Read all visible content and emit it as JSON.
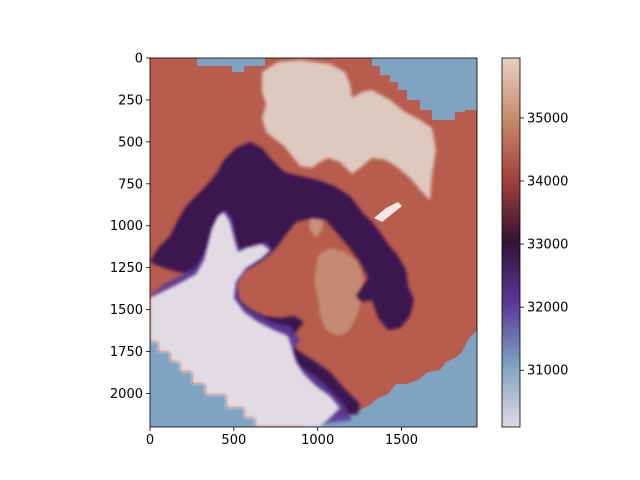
{
  "chart_data": {
    "type": "heatmap",
    "title": "",
    "xlabel": "",
    "ylabel": "",
    "xlim": [
      0,
      1950
    ],
    "ylim": [
      2200,
      0
    ],
    "x_ticks": [
      "0",
      "500",
      "1000",
      "1500"
    ],
    "x_tick_values": [
      0,
      500,
      1000,
      1500
    ],
    "y_ticks": [
      "0",
      "250",
      "500",
      "750",
      "1000",
      "1250",
      "1500",
      "1750",
      "2000"
    ],
    "y_tick_values": [
      0,
      250,
      500,
      750,
      1000,
      1250,
      1500,
      1750,
      2000
    ],
    "colormap": "twilight_shifted",
    "colorbar": {
      "range": [
        30100,
        35950
      ],
      "ticks": [
        "31000",
        "32000",
        "33000",
        "34000",
        "35000"
      ],
      "tick_values": [
        31000,
        32000,
        33000,
        34000,
        35000
      ],
      "stops": [
        "#e2d9e2",
        "#7ea3c0",
        "#5a3a9a",
        "#301436",
        "#a03f3a",
        "#c88a6a",
        "#e6d0c4"
      ]
    },
    "regions": [
      {
        "name": "background",
        "value": 31200,
        "color": "#7fa3c1"
      },
      {
        "name": "shelf",
        "value": 34400,
        "color": "#b85c4d"
      },
      {
        "name": "southern-plateau",
        "value": 35700,
        "color": "#dec9bf"
      },
      {
        "name": "central-bump",
        "value": 35000,
        "color": "#c8937a"
      },
      {
        "name": "trough",
        "value": 33000,
        "color": "#3a1450"
      },
      {
        "name": "lowland",
        "value": 30300,
        "color": "#e3dbe4"
      }
    ]
  }
}
